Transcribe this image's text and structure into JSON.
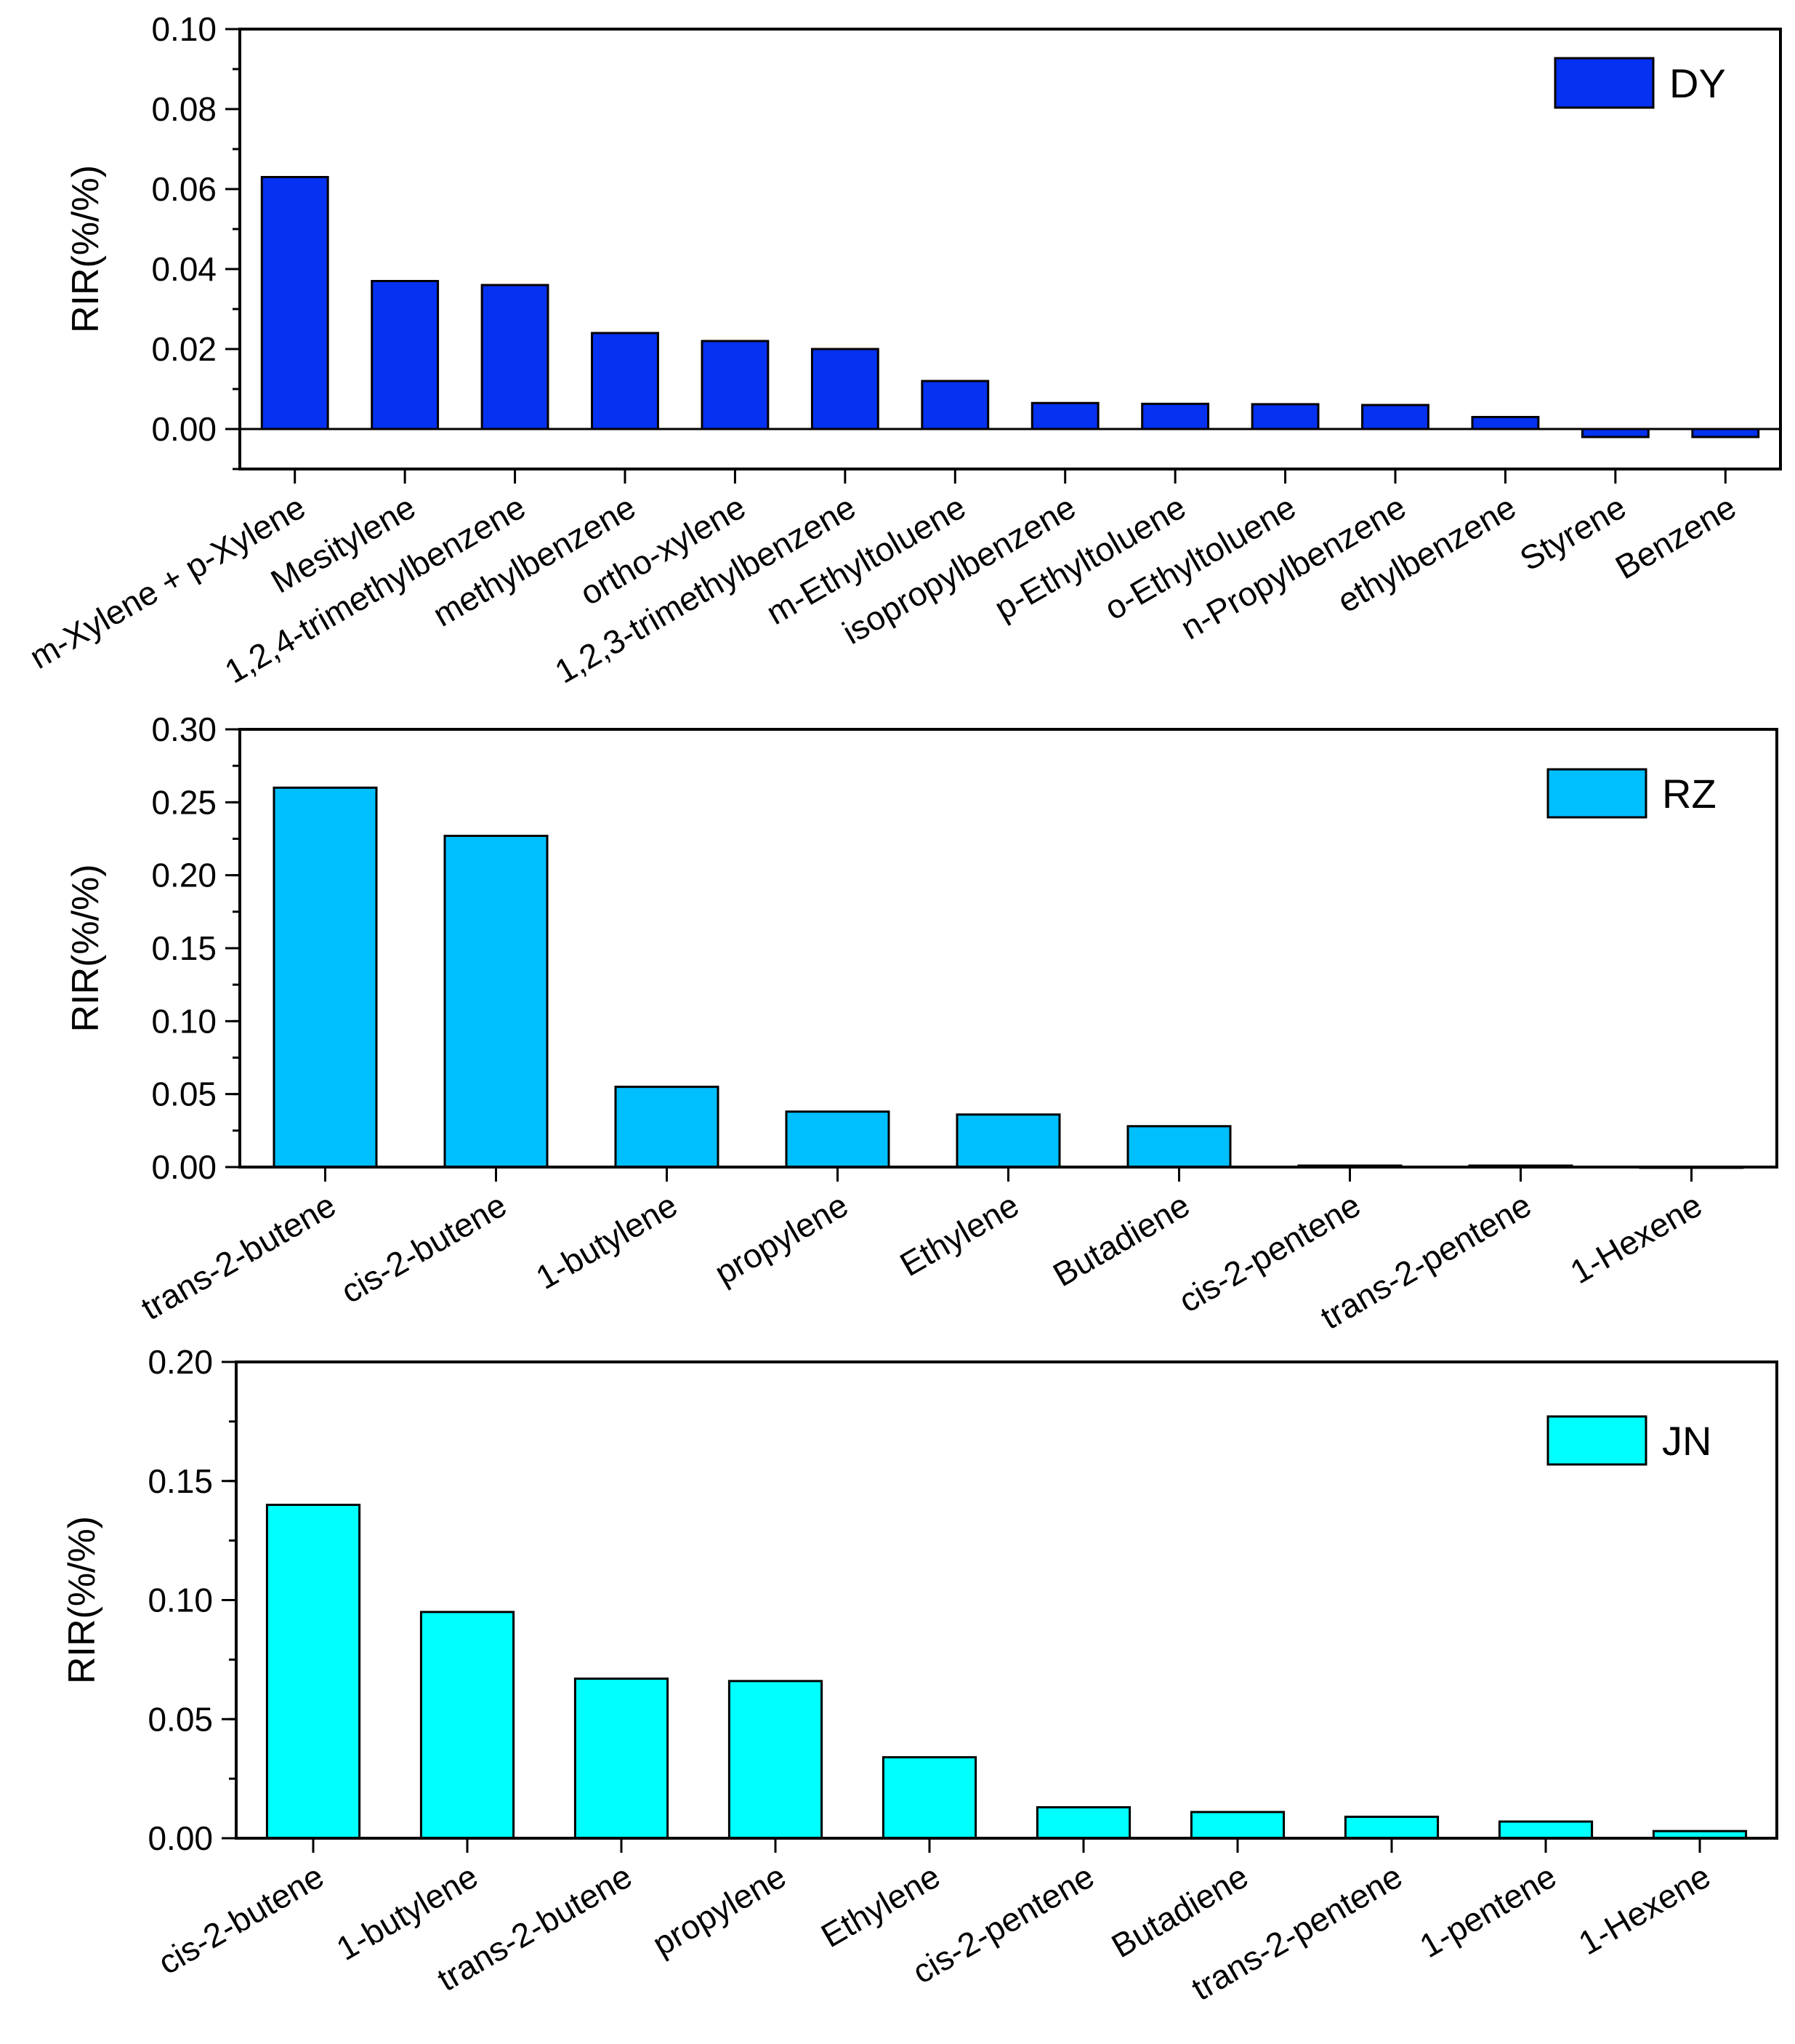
{
  "chart_data": [
    {
      "type": "bar",
      "legend": "DY",
      "color": "#0531F0",
      "ylabel": "RIR(%/%)",
      "xlabel": "",
      "ylim": [
        -0.01,
        0.1
      ],
      "yticks": [
        0.0,
        0.02,
        0.04,
        0.06,
        0.08,
        0.1
      ],
      "ytick_labels": [
        "0.00",
        "0.02",
        "0.04",
        "0.06",
        "0.08",
        "0.10"
      ],
      "categories": [
        "m-Xylene + p-Xylene",
        "Mesitylene",
        "1,2,4-trimethylbenzene",
        "methylbenzene",
        "ortho-xylene",
        "1,2,3-trimethylbenzene",
        "m-Ethyltoluene",
        "isopropylbenzene",
        "p-Ethyltoluene",
        "o-Ethyltoluene",
        "n-Propylbenzene",
        "ethylbenzene",
        "Styrene",
        "Benzene"
      ],
      "values": [
        0.063,
        0.037,
        0.036,
        0.024,
        0.022,
        0.02,
        0.012,
        0.0065,
        0.0063,
        0.0062,
        0.006,
        0.003,
        -0.002,
        -0.002
      ]
    },
    {
      "type": "bar",
      "legend": "RZ",
      "color": "#00BFFF",
      "ylabel": "RIR(%/%)",
      "xlabel": "",
      "ylim": [
        0.0,
        0.3
      ],
      "yticks": [
        0.0,
        0.05,
        0.1,
        0.15,
        0.2,
        0.25,
        0.3
      ],
      "ytick_labels": [
        "0.00",
        "0.05",
        "0.10",
        "0.15",
        "0.20",
        "0.25",
        "0.30"
      ],
      "categories": [
        "trans-2-butene",
        "cis-2-butene",
        "1-butylene",
        "propylene",
        "Ethylene",
        "Butadiene",
        "cis-2-pentene",
        "trans-2-pentene",
        "1-Hexene"
      ],
      "values": [
        0.26,
        0.227,
        0.055,
        0.038,
        0.036,
        0.028,
        0.001,
        0.001,
        0.0
      ]
    },
    {
      "type": "bar",
      "legend": "JN",
      "color": "#00FFFF",
      "ylabel": "RIR(%/%)",
      "xlabel": "",
      "ylim": [
        0.0,
        0.2
      ],
      "yticks": [
        0.0,
        0.05,
        0.1,
        0.15,
        0.2
      ],
      "ytick_labels": [
        "0.00",
        "0.05",
        "0.10",
        "0.15",
        "0.20"
      ],
      "categories": [
        "cis-2-butene",
        "1-butylene",
        "trans-2-butene",
        "propylene",
        "Ethylene",
        "cis-2-pentene",
        "Butadiene",
        "trans-2-pentene",
        "1-pentene",
        "1-Hexene"
      ],
      "values": [
        0.14,
        0.095,
        0.067,
        0.066,
        0.034,
        0.013,
        0.011,
        0.009,
        0.007,
        0.003
      ]
    }
  ]
}
